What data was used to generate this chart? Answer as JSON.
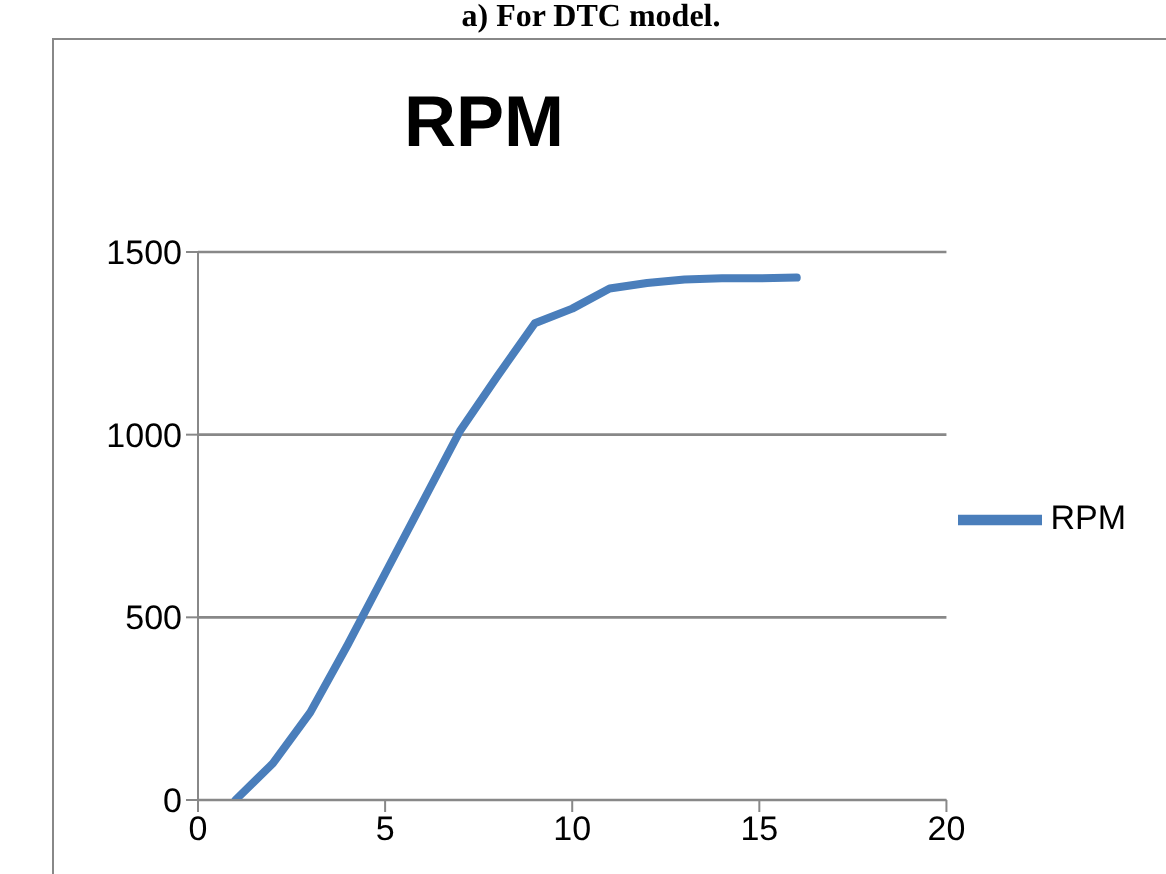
{
  "chart_data": {
    "type": "line",
    "title": "RPM",
    "annotations": [
      "a) For DTC model."
    ],
    "x": [
      1,
      2,
      3,
      4,
      5,
      6,
      7,
      8,
      9,
      10,
      11,
      12,
      13,
      14,
      15,
      16
    ],
    "series": [
      {
        "name": "RPM",
        "color": "#4a7ebb",
        "values": [
          0,
          100,
          240,
          425,
          620,
          815,
          1010,
          1160,
          1305,
          1345,
          1400,
          1415,
          1425,
          1428,
          1428,
          1430
        ]
      }
    ],
    "xlim": [
      0,
      20
    ],
    "xticks": [
      0,
      5,
      10,
      15,
      20
    ],
    "ylim": [
      0,
      1500
    ],
    "yticks": [
      0,
      500,
      1000,
      1500
    ],
    "grid": "y",
    "legend": "right",
    "marker": "none",
    "line_style": "solid"
  }
}
